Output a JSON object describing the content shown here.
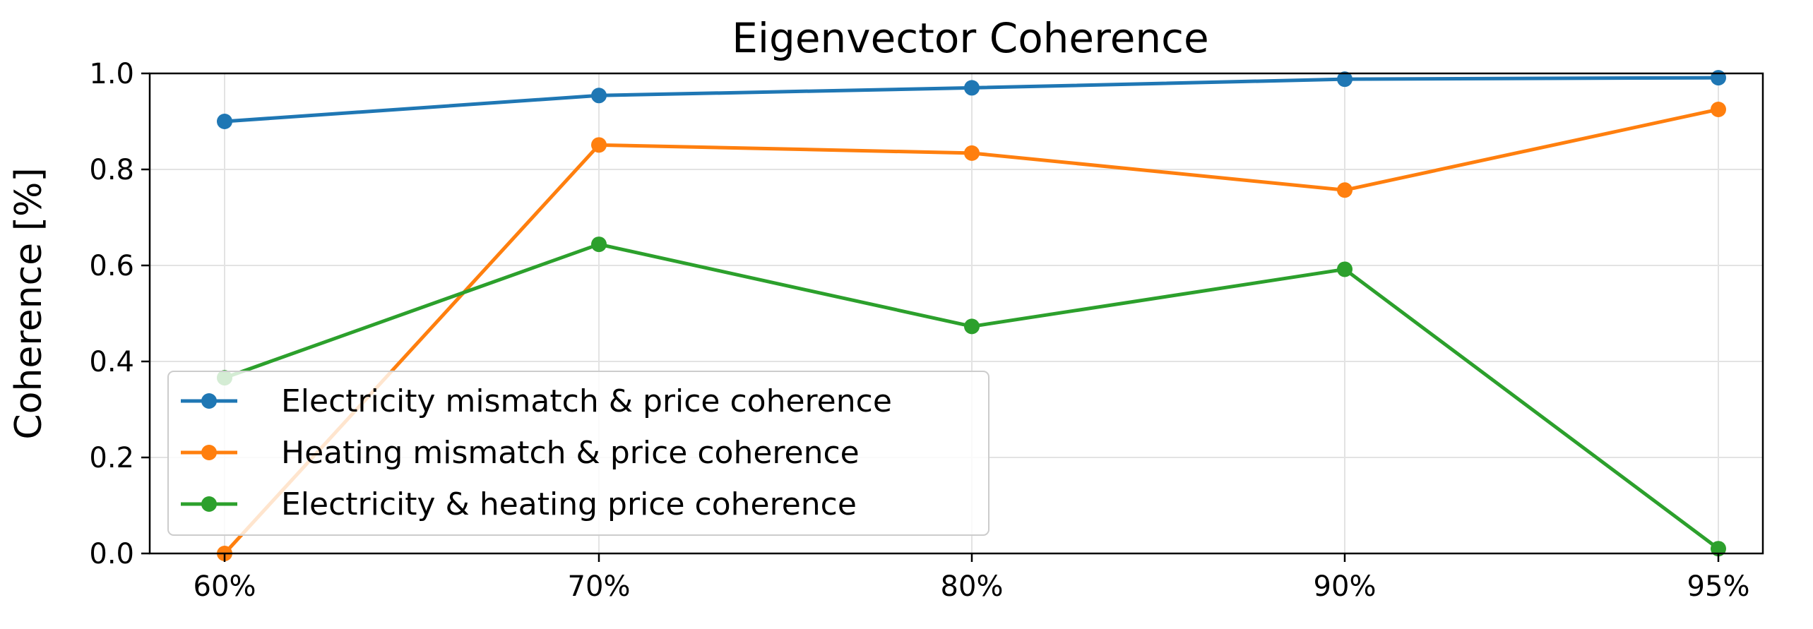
{
  "chart_data": {
    "type": "line",
    "title": "Eigenvector Coherence",
    "xlabel": "",
    "ylabel": "Coherence [%]",
    "categories": [
      "60%",
      "70%",
      "80%",
      "90%",
      "95%"
    ],
    "ylim": [
      0,
      1
    ],
    "yticks": [
      "0.0",
      "0.2",
      "0.4",
      "0.6",
      "0.8",
      "1.0"
    ],
    "grid": true,
    "legend_position": "lower-left",
    "series": [
      {
        "name": "Electricity mismatch & price coherence",
        "color": "#1f77b4",
        "values": [
          0.9,
          0.954,
          0.97,
          0.988,
          0.991
        ]
      },
      {
        "name": "Heating mismatch & price coherence",
        "color": "#ff7f0e",
        "values": [
          0.0,
          0.851,
          0.834,
          0.757,
          0.925
        ]
      },
      {
        "name": "Electricity & heating price coherence",
        "color": "#2ca02c",
        "values": [
          0.366,
          0.644,
          0.473,
          0.592,
          0.01
        ]
      }
    ]
  }
}
